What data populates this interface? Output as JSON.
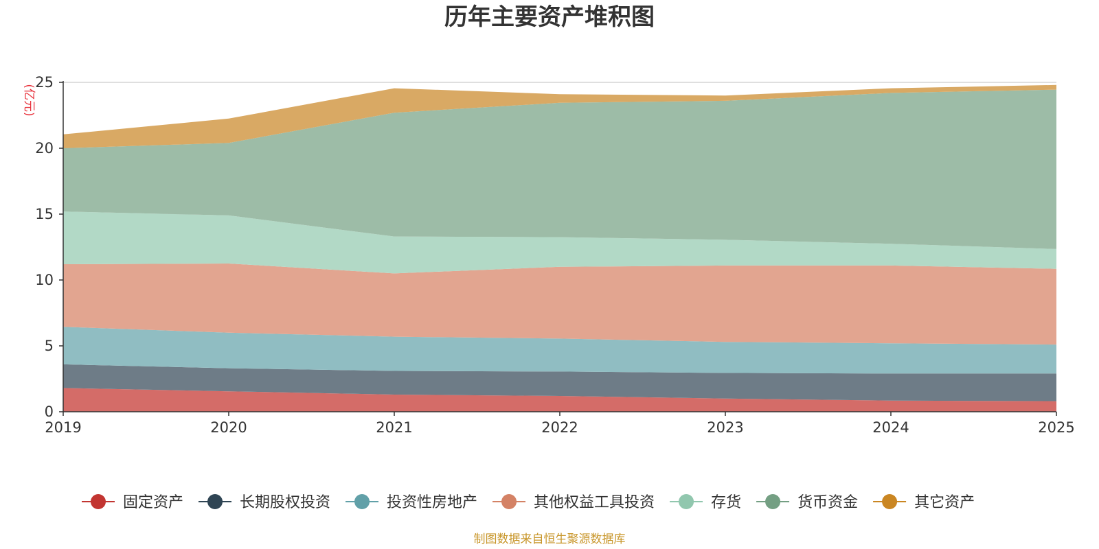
{
  "chart_data": {
    "type": "area",
    "stacked": true,
    "title": "历年主要资产堆积图",
    "unit": "(亿元)",
    "source": "制图数据来自恒生聚源数据库",
    "x": [
      "2019",
      "2020",
      "2021",
      "2022",
      "2023",
      "2024",
      "2025"
    ],
    "ylim": [
      0,
      25
    ],
    "yticks": [
      "0",
      "5",
      "10",
      "15",
      "20",
      "25"
    ],
    "grid": true,
    "legend_position": "bottom",
    "series": [
      {
        "name": "固定资产",
        "color": "#c23531",
        "fill": "#d46c68",
        "values": [
          1.8,
          1.55,
          1.3,
          1.2,
          1.0,
          0.85,
          0.8
        ]
      },
      {
        "name": "长期股权投资",
        "color": "#2f4554",
        "fill": "#6e7c87",
        "values": [
          1.8,
          1.75,
          1.8,
          1.85,
          1.95,
          2.05,
          2.1
        ]
      },
      {
        "name": "投资性房地产",
        "color": "#61a0a8",
        "fill": "#90bdc2",
        "values": [
          2.85,
          2.7,
          2.6,
          2.5,
          2.35,
          2.3,
          2.2
        ]
      },
      {
        "name": "其他权益工具投资",
        "color": "#d48265",
        "fill": "#e2a590",
        "values": [
          4.75,
          5.25,
          4.8,
          5.45,
          5.8,
          5.9,
          5.75
        ]
      },
      {
        "name": "存货",
        "color": "#91c7ae",
        "fill": "#b2d9c6",
        "values": [
          4.0,
          3.65,
          2.8,
          2.25,
          1.95,
          1.65,
          1.5
        ]
      },
      {
        "name": "货币资金",
        "color": "#749f83",
        "fill": "#9dbca7",
        "values": [
          4.8,
          5.5,
          9.4,
          10.2,
          10.55,
          11.45,
          12.1
        ]
      },
      {
        "name": "其它资产",
        "color": "#ca8622",
        "fill": "#d9a964",
        "values": [
          1.05,
          1.85,
          1.85,
          0.65,
          0.4,
          0.35,
          0.35
        ]
      }
    ]
  }
}
